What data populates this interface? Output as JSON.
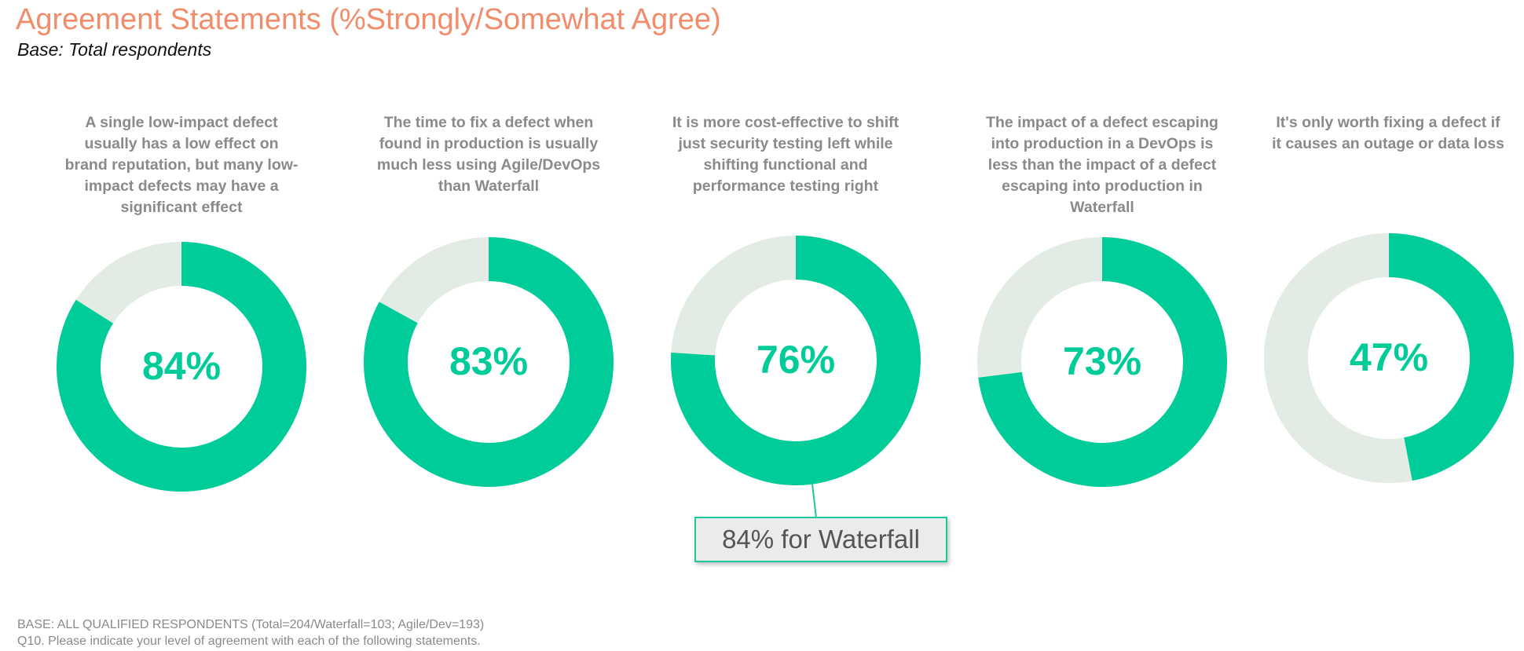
{
  "title": "Agreement Statements (%Strongly/Somewhat Agree)",
  "subtitle": "Base: Total respondents",
  "colors": {
    "title": "#f28c6a",
    "agree": "#00cc99",
    "remainder": "#e2ece4",
    "label": "#8a8a8a"
  },
  "chart_data": {
    "type": "pie",
    "subtype": "donut",
    "categories": [
      "A single low-impact defect usually has a low effect on brand reputation, but many low-impact defects may have a significant effect",
      "The time to fix a defect when found in production is usually much less using Agile/DevOps than Waterfall",
      "It is more cost-effective to shift just security testing left while shifting functional and performance testing right",
      "The impact of a defect escaping into production in a DevOps is less than the impact of a defect escaping into production in Waterfall",
      "It's only worth fixing a defect if it causes an outage or data loss"
    ],
    "values": [
      84,
      83,
      76,
      73,
      47
    ],
    "value_labels": [
      "84%",
      "83%",
      "76%",
      "73%",
      "47%"
    ],
    "unit": "%",
    "annotations": [
      {
        "target_index": 2,
        "text": "84% for Waterfall"
      }
    ]
  },
  "footnotes": [
    "BASE: ALL QUALIFIED RESPONDENTS (Total=204/Waterfall=103; Agile/Dev=193)",
    "Q10. Please indicate your level of agreement with each of the following statements."
  ]
}
